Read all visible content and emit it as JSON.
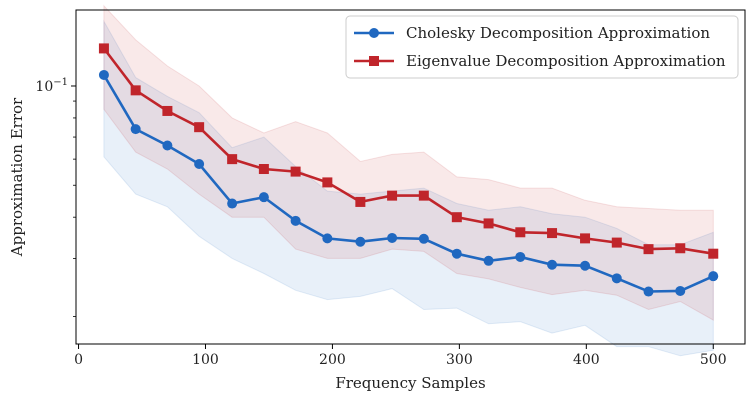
{
  "chart_data": {
    "type": "line",
    "title": "",
    "xlabel": "Frequency Samples",
    "ylabel": "Approximation Error",
    "yscale": "log",
    "xlim": [
      -2,
      525
    ],
    "ylim": [
      0.0165,
      0.17
    ],
    "xticks": [
      0,
      100,
      200,
      300,
      400,
      500
    ],
    "yticks": [
      {
        "value": 0.1,
        "base": "10",
        "exp": "−1"
      }
    ],
    "grid": false,
    "legend_position": "top-right",
    "x": [
      20,
      45,
      70,
      95,
      121,
      146,
      171,
      196,
      222,
      247,
      272,
      298,
      323,
      348,
      373,
      399,
      424,
      449,
      474,
      500
    ],
    "series": [
      {
        "name": "Cholesky Decomposition Approximation",
        "color": "#2068c0",
        "marker": "circle",
        "values": [
          0.108,
          0.074,
          0.066,
          0.058,
          0.044,
          0.046,
          0.039,
          0.0345,
          0.0337,
          0.0346,
          0.0344,
          0.031,
          0.0295,
          0.0303,
          0.0287,
          0.0285,
          0.0261,
          0.0238,
          0.0239,
          0.0265
        ],
        "upper": [
          0.157,
          0.106,
          0.093,
          0.083,
          0.065,
          0.07,
          0.057,
          0.048,
          0.047,
          0.048,
          0.049,
          0.044,
          0.042,
          0.043,
          0.041,
          0.04,
          0.037,
          0.033,
          0.033,
          0.036
        ],
        "lower": [
          0.061,
          0.047,
          0.043,
          0.035,
          0.03,
          0.027,
          0.024,
          0.0225,
          0.023,
          0.0243,
          0.021,
          0.0212,
          0.019,
          0.0193,
          0.0178,
          0.0188,
          0.0162,
          0.0162,
          0.0152,
          0.0158
        ]
      },
      {
        "name": "Eigenvalue Decomposition Approximation",
        "color": "#c0252b",
        "marker": "square",
        "values": [
          0.13,
          0.097,
          0.084,
          0.075,
          0.06,
          0.056,
          0.055,
          0.051,
          0.0445,
          0.0465,
          0.0465,
          0.04,
          0.0383,
          0.036,
          0.0358,
          0.0345,
          0.0335,
          0.032,
          0.0322,
          0.031
        ],
        "upper": [
          0.175,
          0.138,
          0.115,
          0.1,
          0.08,
          0.072,
          0.078,
          0.072,
          0.059,
          0.062,
          0.063,
          0.053,
          0.052,
          0.049,
          0.049,
          0.045,
          0.043,
          0.0425,
          0.042,
          0.042
        ],
        "lower": [
          0.085,
          0.063,
          0.056,
          0.047,
          0.04,
          0.04,
          0.032,
          0.03,
          0.03,
          0.032,
          0.0315,
          0.027,
          0.026,
          0.0245,
          0.0233,
          0.024,
          0.0232,
          0.021,
          0.0222,
          0.0195
        ]
      }
    ]
  }
}
